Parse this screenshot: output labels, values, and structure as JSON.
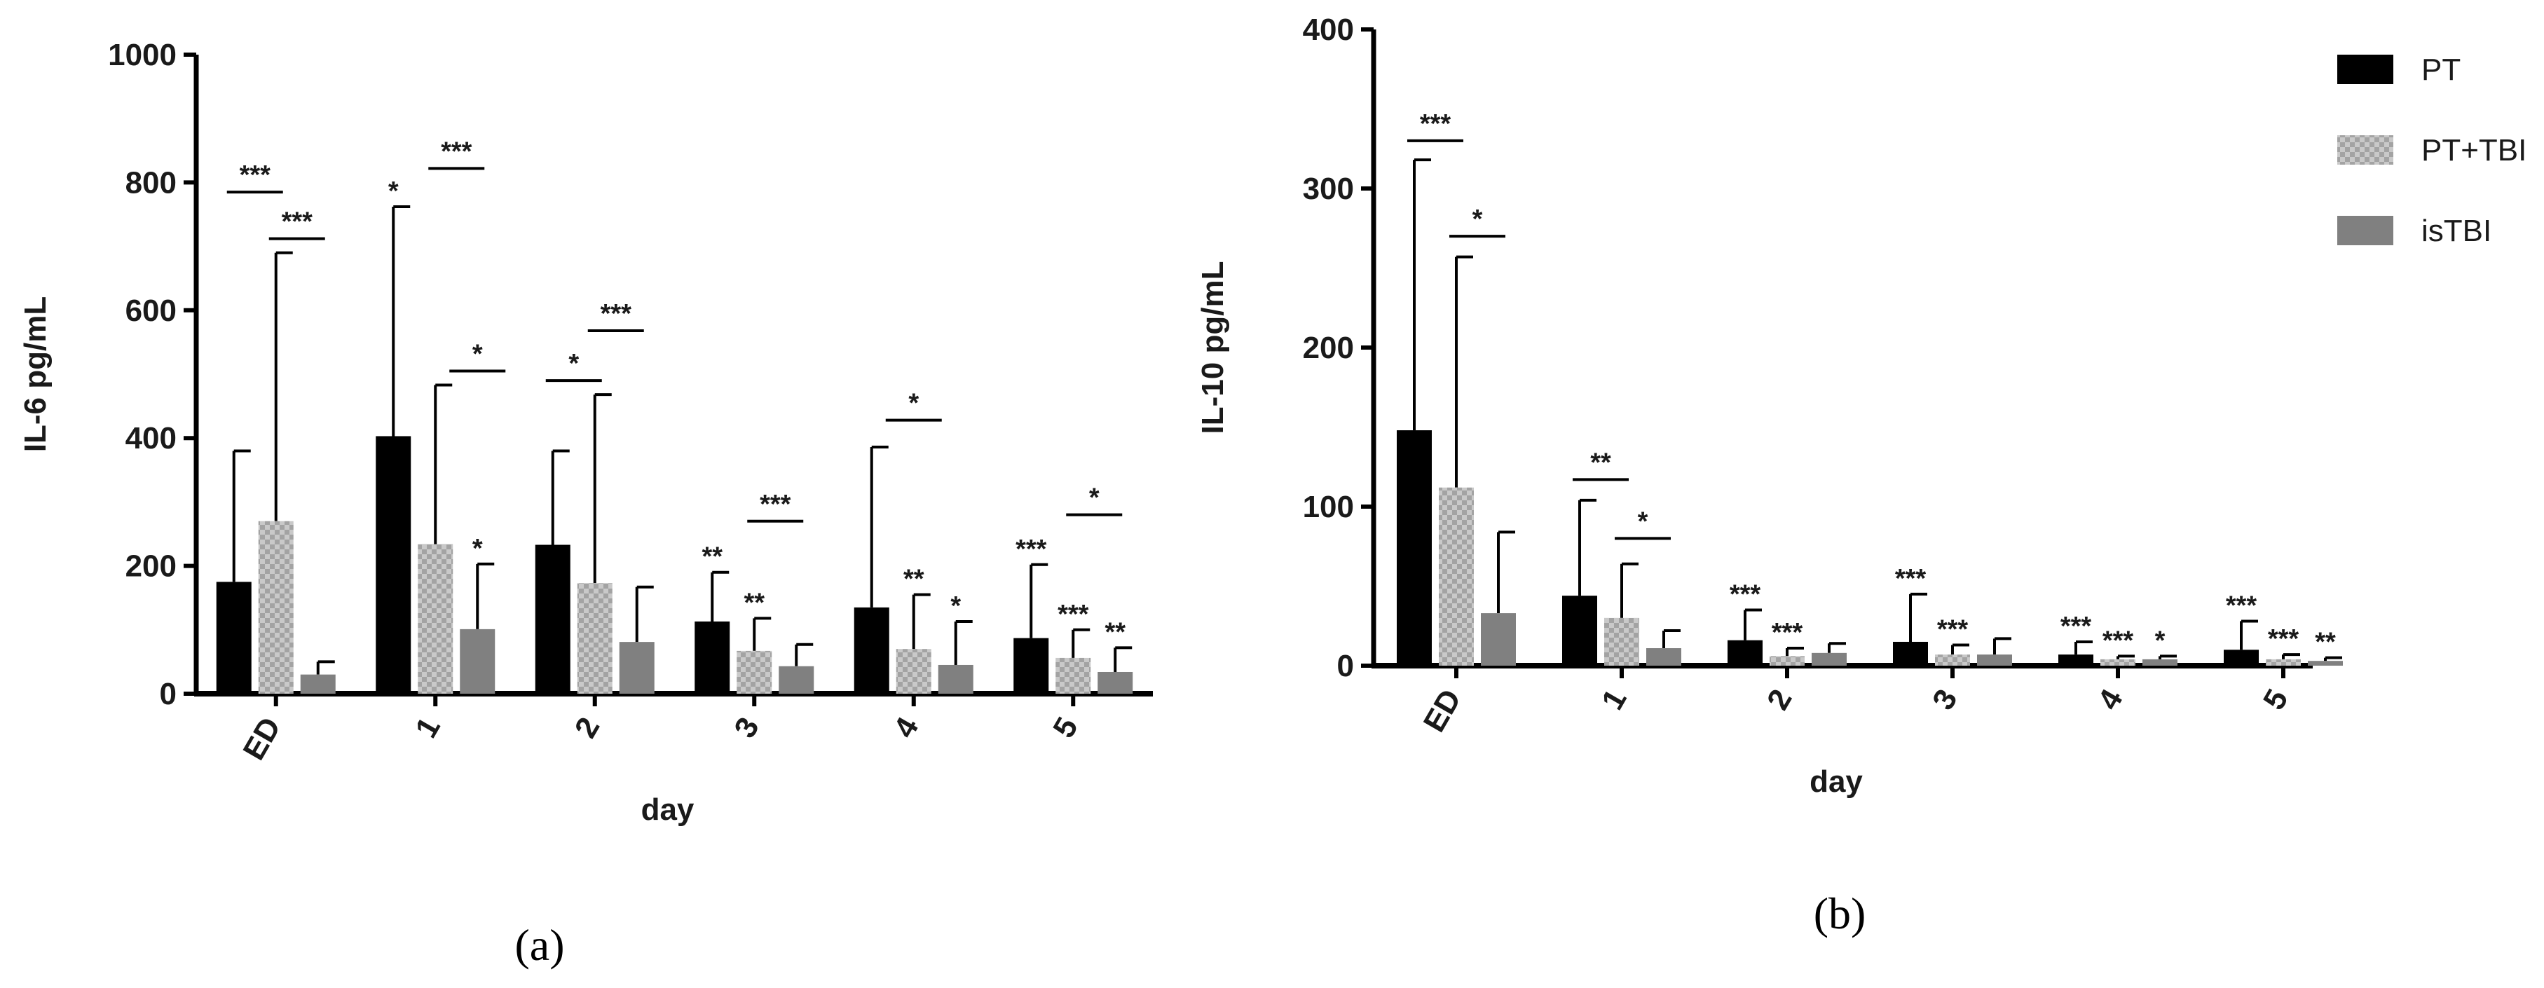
{
  "panel_labels": {
    "a": "(a)",
    "b": "(b)"
  },
  "colors": {
    "PT": "#000000",
    "PT+TBI": "#b4b4b4",
    "isTBI": "#808080",
    "axis": "#000000"
  },
  "chart_data": [
    {
      "type": "bar",
      "panel": "a",
      "xlabel": "day",
      "ylabel": "IL-6 pg/mL",
      "ylim": [
        0,
        1000
      ],
      "yticks": [
        0,
        200,
        400,
        600,
        800,
        1000
      ],
      "categories": [
        "ED",
        "1",
        "2",
        "3",
        "4",
        "5"
      ],
      "series": [
        {
          "name": "PT",
          "fill": "solid",
          "values": [
            175,
            403,
            233,
            113,
            135,
            87
          ],
          "error_upper": [
            380,
            762,
            380,
            190,
            386,
            202
          ]
        },
        {
          "name": "PT+TBI",
          "fill": "checker",
          "values": [
            270,
            234,
            173,
            67,
            70,
            56
          ],
          "error_upper": [
            690,
            483,
            468,
            118,
            155,
            100
          ]
        },
        {
          "name": "isTBI",
          "fill": "solid",
          "values": [
            30,
            101,
            81,
            43,
            45,
            34
          ],
          "error_upper": [
            50,
            203,
            167,
            77,
            113,
            72
          ]
        }
      ],
      "bar_stars": [
        [
          "",
          "",
          ""
        ],
        [
          "*",
          "",
          "*"
        ],
        [
          "",
          "",
          ""
        ],
        [
          "**",
          "**",
          ""
        ],
        [
          "",
          "**",
          "*"
        ],
        [
          "***",
          "***",
          "**"
        ]
      ],
      "brackets": [
        {
          "group": 0,
          "from": 0,
          "to": 1,
          "level": 785,
          "label": "***"
        },
        {
          "group": 0,
          "from": 1,
          "to": 2,
          "level": 712,
          "label": "***"
        },
        {
          "group": 1,
          "from": 1,
          "to": 2,
          "level": 822,
          "label": "***"
        },
        {
          "group": 1,
          "from": 1.5,
          "to": 2.5,
          "level": 505,
          "label": "*"
        },
        {
          "group": 2,
          "from": 0,
          "to": 1,
          "level": 490,
          "label": "*"
        },
        {
          "group": 2,
          "from": 1,
          "to": 2,
          "level": 568,
          "label": "***"
        },
        {
          "group": 3,
          "from": 1,
          "to": 2,
          "level": 270,
          "label": "***"
        },
        {
          "group": 4,
          "from": 0.5,
          "to": 1.5,
          "level": 428,
          "label": "*"
        },
        {
          "group": 5,
          "from": 1,
          "to": 2,
          "level": 280,
          "label": "*"
        }
      ]
    },
    {
      "type": "bar",
      "panel": "b",
      "xlabel": "day",
      "ylabel": "IL-10 pg/mL",
      "ylim": [
        0,
        400
      ],
      "yticks": [
        0,
        100,
        200,
        300,
        400
      ],
      "categories": [
        "ED",
        "1",
        "2",
        "3",
        "4",
        "5"
      ],
      "legend": [
        "PT",
        "PT+TBI",
        "isTBI"
      ],
      "legend_position": "top-right",
      "series": [
        {
          "name": "PT",
          "fill": "solid",
          "values": [
            148,
            44,
            16,
            15,
            7,
            10
          ],
          "error_upper": [
            318,
            104,
            35,
            45,
            15,
            28
          ]
        },
        {
          "name": "PT+TBI",
          "fill": "checker",
          "values": [
            112,
            30,
            6,
            7,
            4,
            4
          ],
          "error_upper": [
            257,
            64,
            11,
            13,
            6,
            7
          ]
        },
        {
          "name": "isTBI",
          "fill": "solid",
          "values": [
            33,
            11,
            8,
            7,
            4,
            3
          ],
          "error_upper": [
            84,
            22,
            14,
            17,
            6,
            5
          ]
        }
      ],
      "bar_stars": [
        [
          "",
          "",
          ""
        ],
        [
          "",
          "",
          ""
        ],
        [
          "***",
          "***",
          ""
        ],
        [
          "***",
          "***",
          ""
        ],
        [
          "***",
          "***",
          "*"
        ],
        [
          "***",
          "***",
          "**"
        ]
      ],
      "brackets": [
        {
          "group": 0,
          "from": 0,
          "to": 1,
          "level": 330,
          "label": "***"
        },
        {
          "group": 0,
          "from": 1,
          "to": 2,
          "level": 270,
          "label": "*"
        },
        {
          "group": 1,
          "from": 0,
          "to": 1,
          "level": 117,
          "label": "**"
        },
        {
          "group": 1,
          "from": 1,
          "to": 2,
          "level": 80,
          "label": "*"
        }
      ]
    }
  ]
}
